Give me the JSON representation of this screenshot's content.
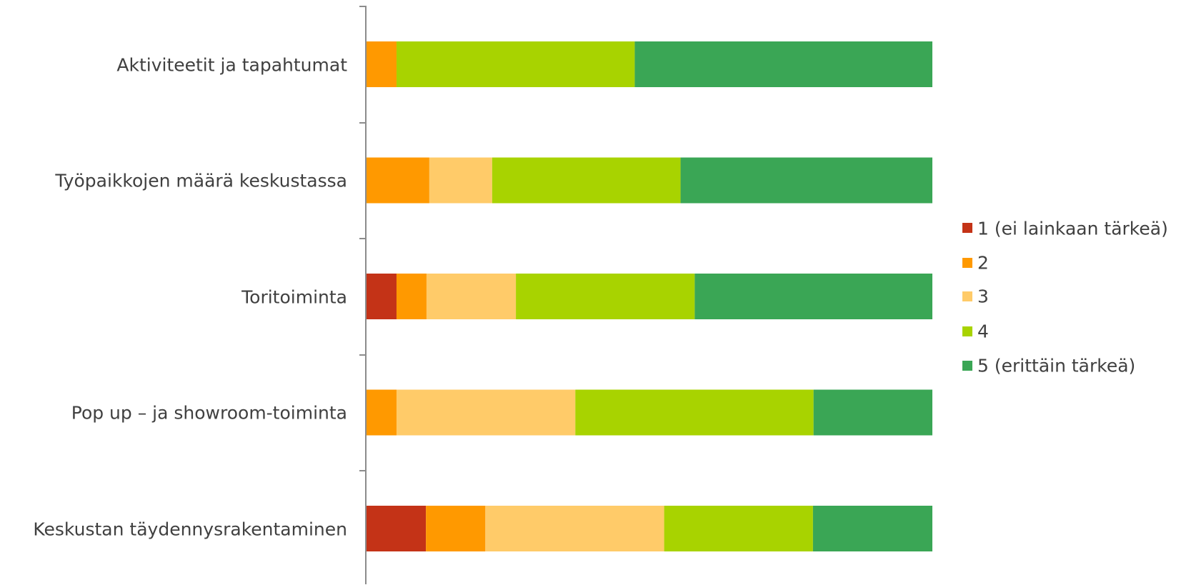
{
  "chart_data": {
    "type": "bar",
    "orientation": "horizontal",
    "stacked": "percent",
    "categories": [
      "Aktiviteetit ja tapahtumat",
      "Työpaikkojen määrä keskustassa",
      "Toritoiminta",
      "Pop up – ja showroom-toiminta",
      "Keskustan täydennysrakentaminen"
    ],
    "series": [
      {
        "name": "1 (ei lainkaan tärkeä)",
        "color": "#C43317",
        "values": [
          0,
          0,
          5.3,
          0,
          10.5
        ]
      },
      {
        "name": "2",
        "color": "#FF9900",
        "values": [
          5.3,
          11.1,
          5.3,
          5.3,
          10.5
        ]
      },
      {
        "name": "3",
        "color": "#FFCB69",
        "values": [
          0,
          11.1,
          15.8,
          31.6,
          31.6
        ]
      },
      {
        "name": "4",
        "color": "#A8D300",
        "values": [
          42.1,
          33.3,
          31.6,
          42.1,
          26.3
        ]
      },
      {
        "name": "5 (erittäin tärkeä)",
        "color": "#3AA655",
        "values": [
          52.6,
          44.5,
          42.0,
          21.0,
          21.1
        ]
      }
    ],
    "title": "",
    "xlabel": "",
    "ylabel": "",
    "xlim": [
      0,
      100
    ],
    "grid": false,
    "legend": "right"
  }
}
